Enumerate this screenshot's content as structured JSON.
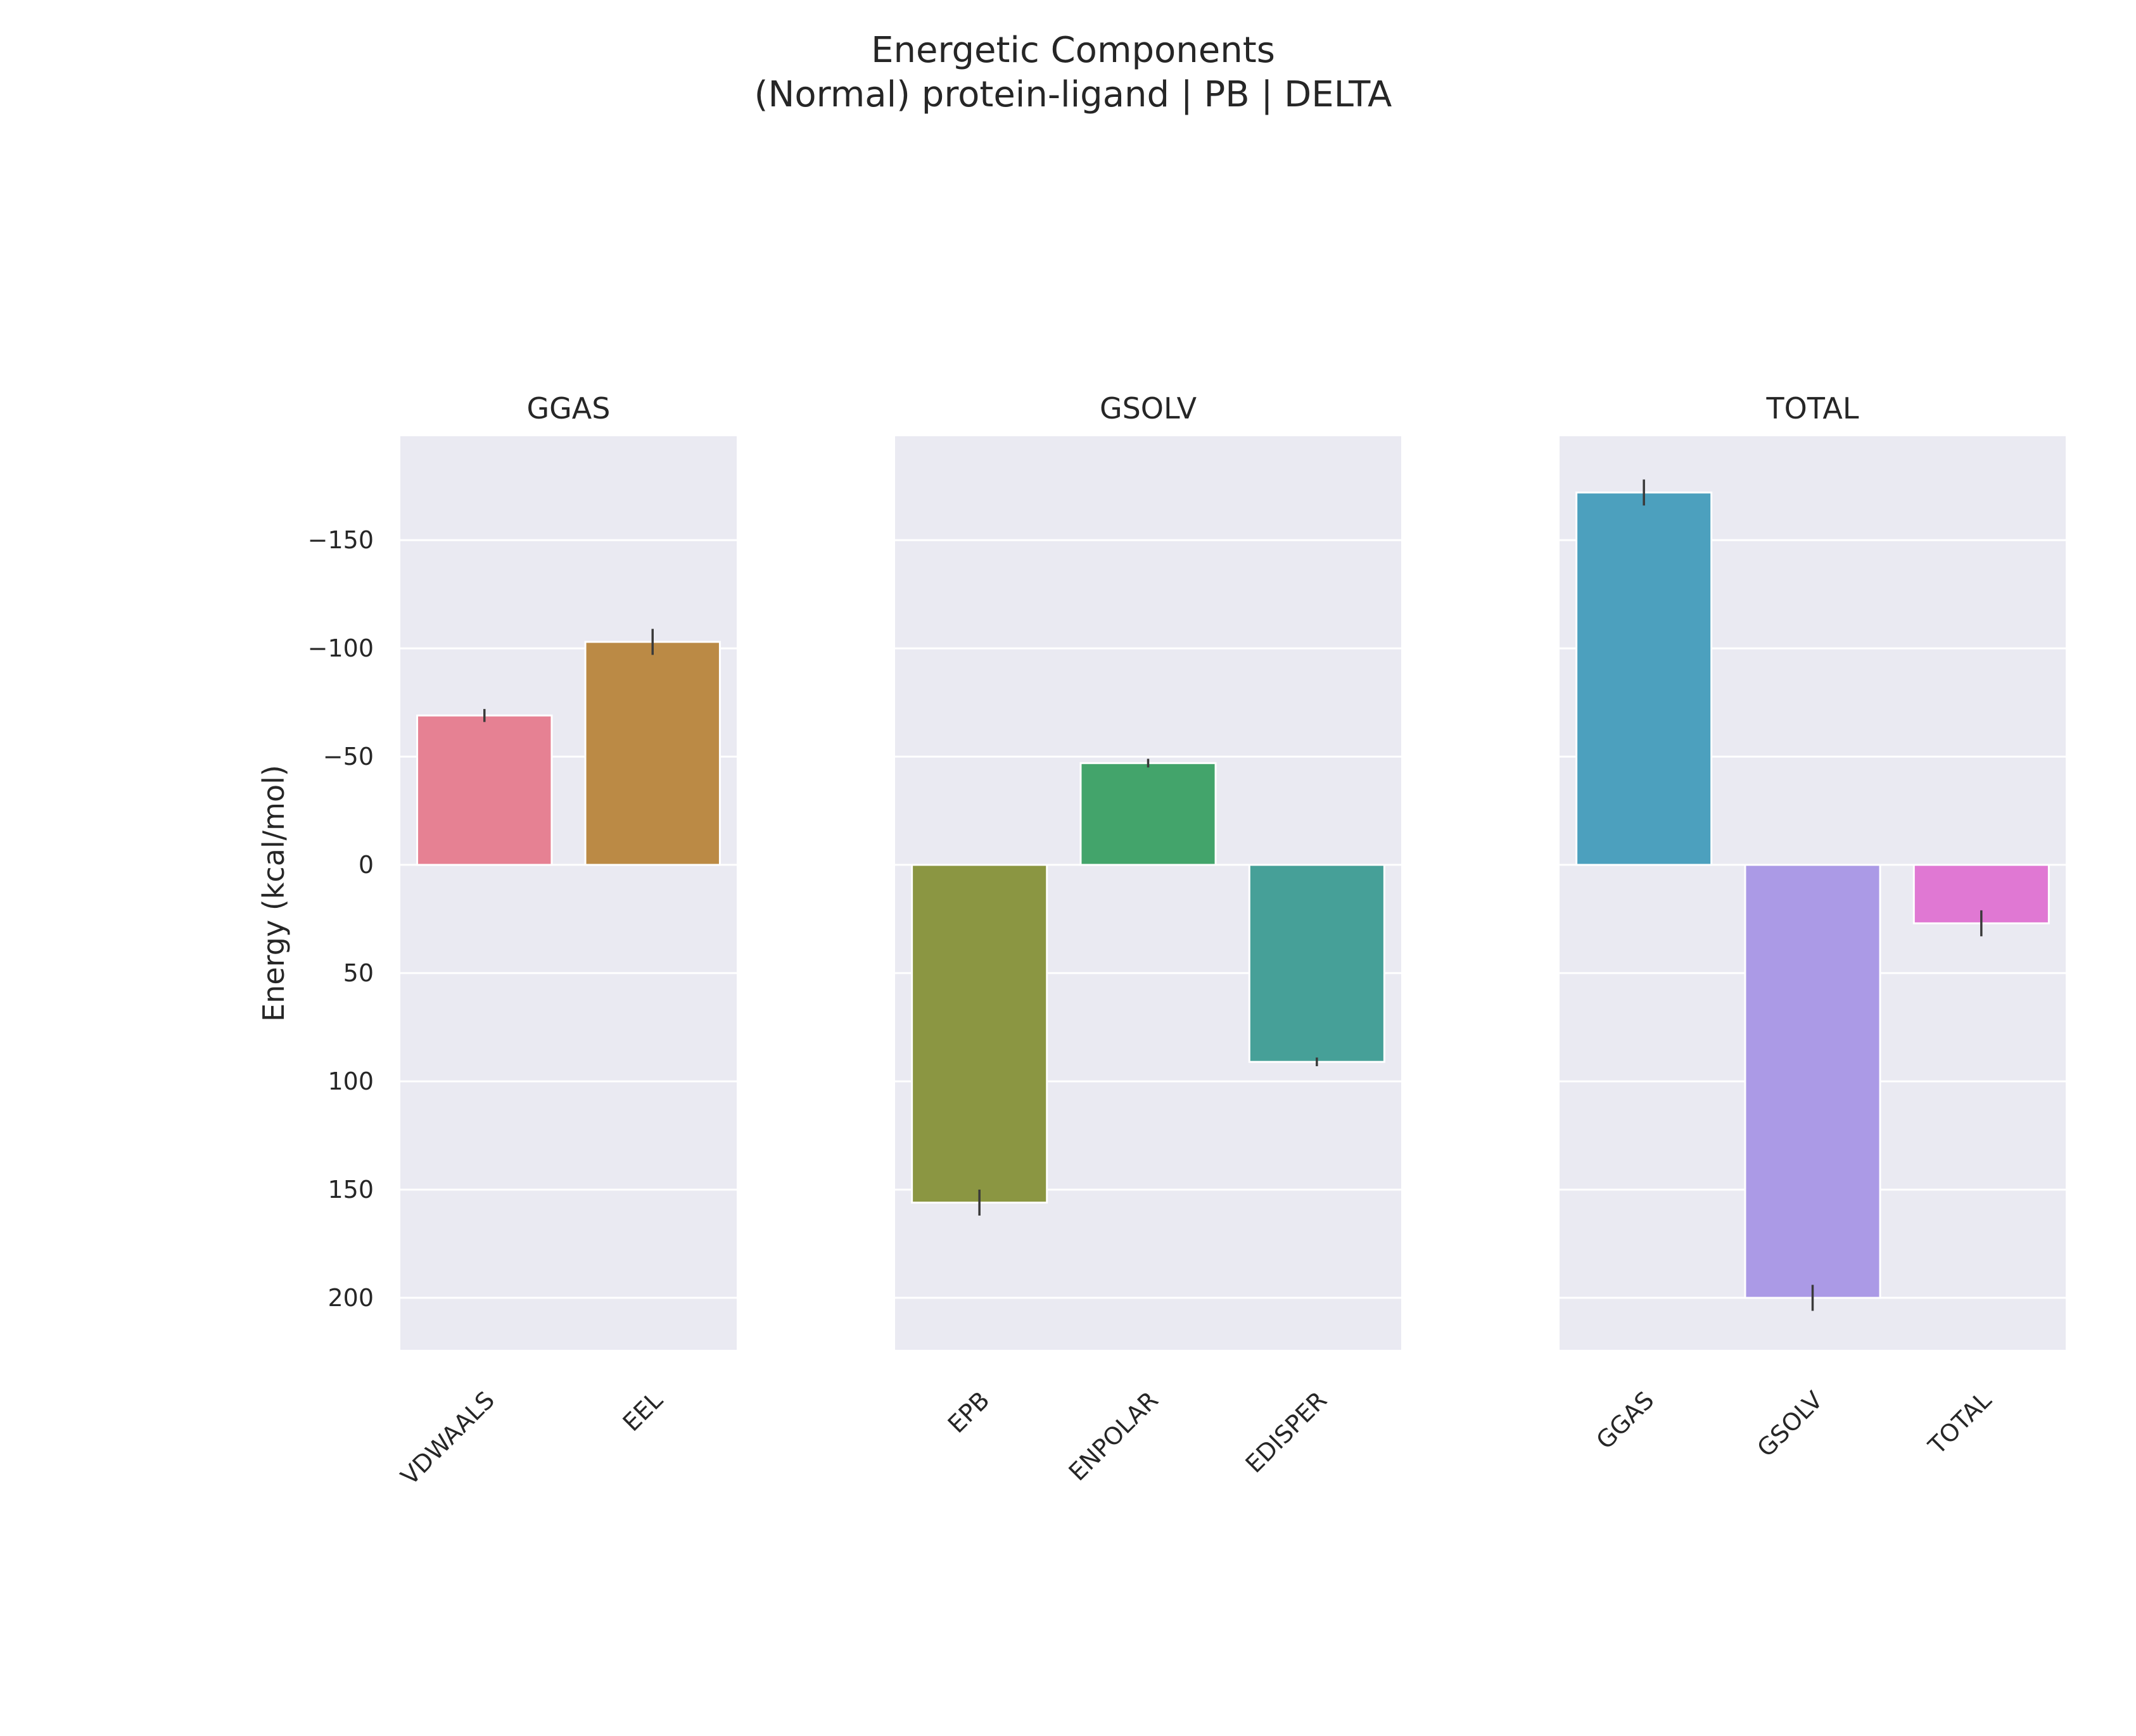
{
  "chart_data": {
    "type": "bar",
    "title": "Energetic Components",
    "subtitle": "(Normal) protein-ligand | PB | DELTA",
    "ylabel": "Energy (kcal/mol)",
    "y_inverted": true,
    "ylim": [
      -198,
      224
    ],
    "yticks": [
      -150,
      -100,
      -50,
      0,
      50,
      100,
      150,
      200
    ],
    "ytick_labels": [
      "−150",
      "−100",
      "−50",
      "0",
      "50",
      "100",
      "150",
      "200"
    ],
    "grid": true,
    "panels": [
      {
        "title": "GGAS",
        "categories": [
          "VDWAALS",
          "EEL"
        ],
        "values": [
          -69,
          -103
        ],
        "errors": [
          3,
          6
        ],
        "colors": [
          "#e68193",
          "#bb8a45"
        ]
      },
      {
        "title": "GSOLV",
        "categories": [
          "EPB",
          "ENPOLAR",
          "EDISPER"
        ],
        "values": [
          156,
          -47,
          91
        ],
        "errors": [
          6,
          2,
          2
        ],
        "colors": [
          "#8b9642",
          "#43a46b",
          "#46a098"
        ]
      },
      {
        "title": "TOTAL",
        "categories": [
          "GGAS",
          "GSOLV",
          "TOTAL"
        ],
        "values": [
          -172,
          200,
          27
        ],
        "errors": [
          6,
          6,
          6
        ],
        "colors": [
          "#4ca0be",
          "#ab9ae6",
          "#e078d3"
        ]
      }
    ]
  }
}
